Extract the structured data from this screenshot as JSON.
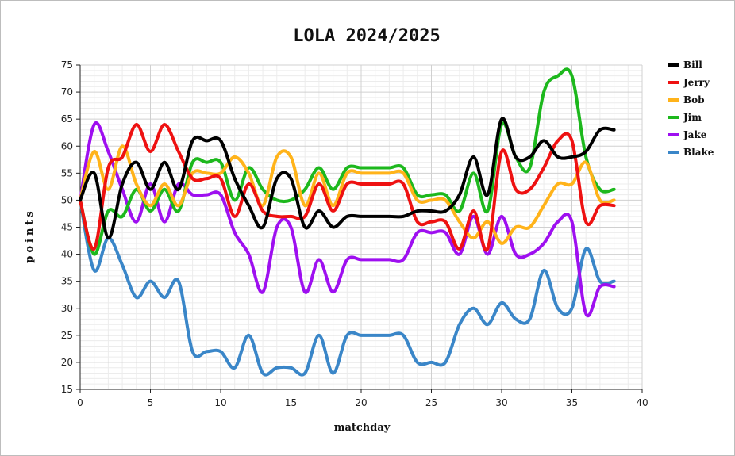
{
  "chart_data": {
    "type": "line",
    "title": "LOLA  2024/2025",
    "xlabel": "matchday",
    "ylabel": "points",
    "xlim": [
      0,
      40
    ],
    "ylim": [
      15,
      75
    ],
    "xticks": [
      0,
      5,
      10,
      15,
      20,
      25,
      30,
      35,
      40
    ],
    "yticks": [
      15,
      20,
      25,
      30,
      35,
      40,
      45,
      50,
      55,
      60,
      65,
      70,
      75
    ],
    "grid": true,
    "legend_position": "right",
    "x": [
      0,
      1,
      2,
      3,
      4,
      5,
      6,
      7,
      8,
      9,
      10,
      11,
      12,
      13,
      14,
      15,
      16,
      17,
      18,
      19,
      20,
      21,
      22,
      23,
      24,
      25,
      26,
      27,
      28,
      29,
      30,
      31,
      32,
      33,
      34,
      35,
      36,
      37,
      38
    ],
    "series": [
      {
        "name": "Bill",
        "color": "#000000",
        "values": [
          50,
          55,
          43,
          53,
          57,
          52,
          57,
          52,
          61,
          61,
          61,
          54,
          49,
          45,
          54,
          54,
          45,
          48,
          45,
          47,
          47,
          47,
          47,
          47,
          48,
          48,
          48,
          51,
          58,
          51,
          65,
          58,
          58,
          61,
          58,
          58,
          59,
          63,
          63
        ]
      },
      {
        "name": "Jerry",
        "color": "#ee1111",
        "values": [
          50,
          41,
          56,
          58,
          64,
          59,
          64,
          59,
          54,
          54,
          54,
          47,
          53,
          48,
          47,
          47,
          47,
          53,
          48,
          53,
          53,
          53,
          53,
          53,
          46,
          46,
          46,
          41,
          48,
          41,
          59,
          52,
          52,
          56,
          61,
          61,
          46,
          49,
          49
        ]
      },
      {
        "name": "Bob",
        "color": "#ffb31a",
        "values": [
          50,
          59,
          52,
          60,
          53,
          49,
          53,
          49,
          55,
          55,
          55,
          58,
          55,
          49,
          58,
          58,
          49,
          55,
          49,
          55,
          55,
          55,
          55,
          55,
          50,
          50,
          50,
          46,
          43,
          46,
          42,
          45,
          45,
          49,
          53,
          53,
          57,
          50,
          50
        ]
      },
      {
        "name": "Jim",
        "color": "#1db81d",
        "values": [
          50,
          40,
          48,
          47,
          52,
          48,
          52,
          48,
          57,
          57,
          57,
          50,
          56,
          52,
          50,
          50,
          52,
          56,
          52,
          56,
          56,
          56,
          56,
          56,
          51,
          51,
          51,
          48,
          55,
          48,
          64,
          58,
          56,
          70,
          73,
          73,
          58,
          52,
          52
        ]
      },
      {
        "name": "Jake",
        "color": "#9e0ff0",
        "values": [
          50,
          64,
          59,
          52,
          46,
          53,
          46,
          53,
          51,
          51,
          51,
          44,
          40,
          33,
          45,
          45,
          33,
          39,
          33,
          39,
          39,
          39,
          39,
          39,
          44,
          44,
          44,
          40,
          47,
          40,
          47,
          40,
          40,
          42,
          46,
          46,
          29,
          34,
          34
        ]
      },
      {
        "name": "Blake",
        "color": "#3a86c8",
        "values": [
          50,
          37,
          43,
          38,
          32,
          35,
          32,
          35,
          22,
          22,
          22,
          19,
          25,
          18,
          19,
          19,
          18,
          25,
          18,
          25,
          25,
          25,
          25,
          25,
          20,
          20,
          20,
          27,
          30,
          27,
          31,
          28,
          28,
          37,
          30,
          30,
          41,
          35,
          35
        ]
      }
    ]
  }
}
